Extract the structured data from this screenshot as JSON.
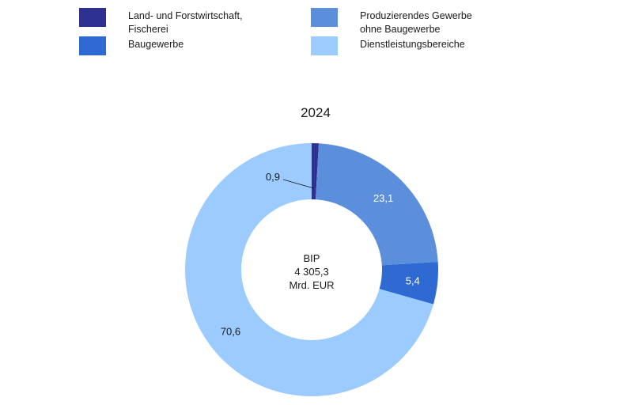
{
  "chart_data": {
    "type": "pie",
    "title": "2024",
    "center_text": [
      "BIP",
      "4 305,3",
      "Mrd. EUR"
    ],
    "categories": [
      "Land- und Forstwirtschaft,\nFischerei",
      "Produzierendes Gewerbe\nohne Baugewerbe",
      "Baugewerbe",
      "Dienstleistungsbereiche"
    ],
    "values": [
      0.9,
      23.1,
      5.4,
      70.6
    ],
    "value_labels": [
      "0,9",
      "23,1",
      "5,4",
      "70,6"
    ],
    "colors": [
      "#2e3192",
      "#5b8fdc",
      "#2f6ad2",
      "#9ccbff"
    ],
    "label_colors": [
      "#1a1a1a",
      "#ffffff",
      "#ffffff",
      "#1a1a1a"
    ],
    "legend_position": "top"
  }
}
